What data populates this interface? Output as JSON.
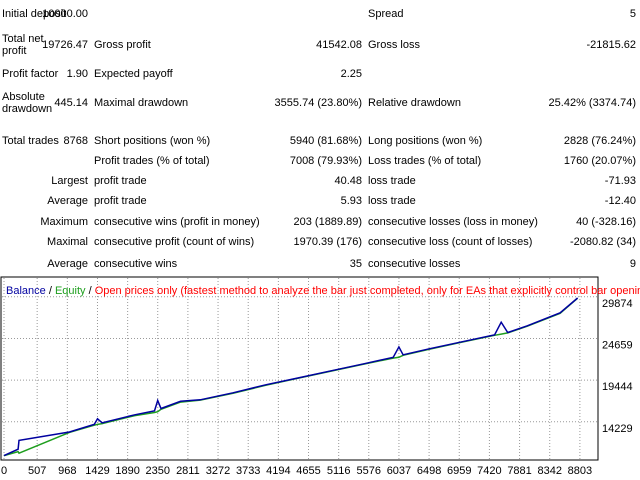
{
  "report": {
    "rows": [
      {
        "c1_label": "Initial deposit",
        "c1_value": "10000.00",
        "c3_label": "Spread",
        "c3_value": "5"
      },
      {
        "c1_label": "Total net profit",
        "c1_value": "19726.47",
        "c2_label": "Gross profit",
        "c2_value": "41542.08",
        "c3_label": "Gross loss",
        "c3_value": "-21815.62"
      },
      {
        "c1_label": "Profit factor",
        "c1_value": "1.90",
        "c2_label": "Expected payoff",
        "c2_value": "2.25"
      },
      {
        "c1_label": "Absolute drawdown",
        "c1_value": "445.14",
        "c2_label": "Maximal drawdown",
        "c2_value": "3555.74 (23.80%)",
        "c3_label": "Relative drawdown",
        "c3_value": "25.42% (3374.74)"
      },
      {
        "c1_label": "Total trades",
        "c1_value": "8768",
        "c2_label": "Short positions (won %)",
        "c2_value": "5940 (81.68%)",
        "c3_label": "Long positions (won %)",
        "c3_value": "2828 (76.24%)"
      },
      {
        "c2_label": "Profit trades (% of total)",
        "c2_value": "7008 (79.93%)",
        "c3_label": "Loss trades (% of total)",
        "c3_value": "1760 (20.07%)"
      },
      {
        "c1_value": "Largest",
        "c2_label": "profit trade",
        "c2_value": "40.48",
        "c3_label": "loss trade",
        "c3_value": "-71.93"
      },
      {
        "c1_value": "Average",
        "c2_label": "profit trade",
        "c2_value": "5.93",
        "c3_label": "loss trade",
        "c3_value": "-12.40"
      },
      {
        "c1_value": "Maximum",
        "c2_label": "consecutive wins (profit in money)",
        "c2_value": "203 (1889.89)",
        "c3_label": "consecutive losses (loss in money)",
        "c3_value": "40 (-328.16)"
      },
      {
        "c1_value": "Maximal",
        "c2_label": "consecutive profit (count of wins)",
        "c2_value": "1970.39 (176)",
        "c3_label": "consecutive loss (count of losses)",
        "c3_value": "-2080.82 (34)"
      },
      {
        "c1_value": "Average",
        "c2_label": "consecutive wins",
        "c2_value": "35",
        "c3_label": "consecutive losses",
        "c3_value": "9"
      }
    ]
  },
  "chart_data": {
    "type": "line",
    "legend_separator": "/",
    "note": "Open prices only (fastest method to analyze the bar just completed, only for EAs that explicitly control bar opening)",
    "note_color": "#ff0000",
    "x": [
      0,
      215,
      230,
      1000,
      1380,
      1429,
      1500,
      2000,
      2300,
      2350,
      2400,
      2700,
      3000,
      3500,
      4000,
      4500,
      5000,
      5500,
      5950,
      6037,
      6100,
      6500,
      7000,
      7500,
      7600,
      7700,
      8000,
      8500,
      8768
    ],
    "series": [
      {
        "name": "Balance",
        "color": "#0000a0",
        "values": [
          10000,
          10800,
          11900,
          12950,
          13900,
          14600,
          14100,
          15100,
          15600,
          16900,
          15900,
          16800,
          16980,
          17860,
          18860,
          19730,
          20610,
          21490,
          22300,
          23600,
          22620,
          23360,
          24240,
          25110,
          26700,
          25400,
          26240,
          27870,
          29726.47
        ]
      },
      {
        "name": "Equity",
        "color": "#1e9e1e",
        "values": [
          10000,
          10500,
          10300,
          12900,
          13800,
          13900,
          14000,
          15000,
          15400,
          15500,
          15800,
          16700,
          16950,
          17800,
          18800,
          19700,
          20580,
          21450,
          22200,
          22300,
          22550,
          23300,
          24200,
          25050,
          25200,
          25350,
          26200,
          27800,
          29700
        ]
      }
    ],
    "xlim": [
      0,
      9080
    ],
    "ylim": [
      9700,
      31600
    ],
    "xticks": [
      0,
      507,
      968,
      1429,
      1890,
      2350,
      2811,
      3272,
      3733,
      4194,
      4655,
      5116,
      5576,
      6037,
      6498,
      6959,
      7420,
      7881,
      8342,
      8803
    ],
    "yticks": [
      14229,
      19444,
      24659,
      29874
    ],
    "grid": true
  }
}
